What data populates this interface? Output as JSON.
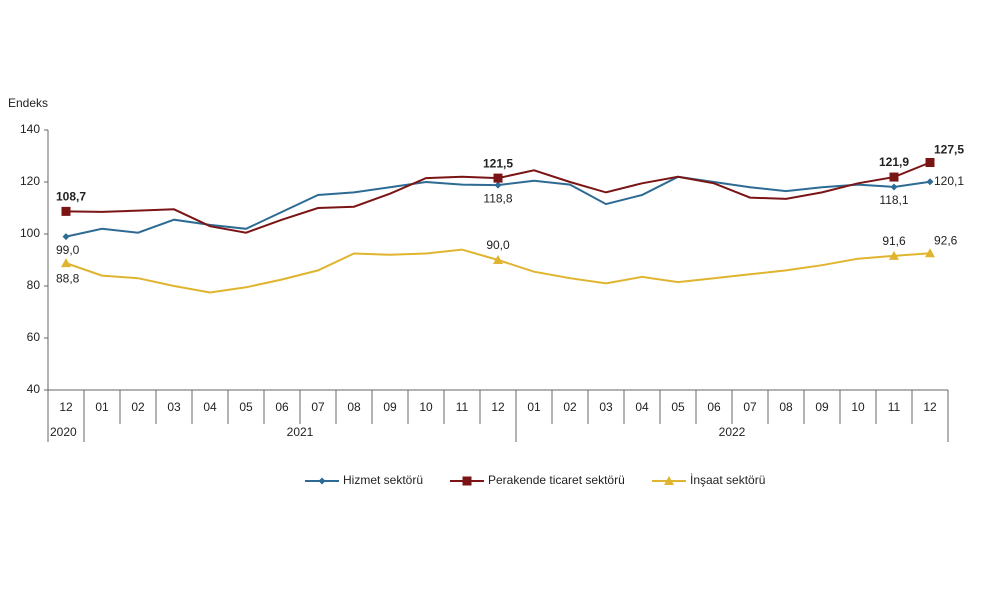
{
  "chart_data": {
    "type": "line",
    "y_label": "Endeks",
    "categories": [
      "12",
      "01",
      "02",
      "03",
      "04",
      "05",
      "06",
      "07",
      "08",
      "09",
      "10",
      "11",
      "12",
      "01",
      "02",
      "03",
      "04",
      "05",
      "06",
      "07",
      "08",
      "09",
      "10",
      "11",
      "12"
    ],
    "groups": [
      {
        "label": "2020",
        "count": 1
      },
      {
        "label": "2021",
        "count": 12
      },
      {
        "label": "2022",
        "count": 12
      }
    ],
    "ylim": [
      40,
      140
    ],
    "yticks": [
      40,
      60,
      80,
      100,
      120,
      140
    ],
    "grid": false,
    "series": [
      {
        "name": "Hizmet sektörü",
        "color": "#2e6b94",
        "marker": "diamond",
        "values": [
          99.0,
          102,
          100.5,
          105.5,
          103.5,
          102,
          108.5,
          115,
          116,
          118,
          120,
          119,
          118.8,
          120.5,
          119,
          111.5,
          115,
          122,
          120,
          118,
          116.5,
          118,
          119,
          118.1,
          120.1
        ],
        "value_labels": [
          "99,0",
          null,
          null,
          null,
          null,
          null,
          null,
          null,
          null,
          null,
          null,
          null,
          "118,8",
          null,
          null,
          null,
          null,
          null,
          null,
          null,
          null,
          null,
          null,
          "118,1",
          "120,1"
        ]
      },
      {
        "name": "Perakende ticaret sektörü",
        "color": "#7b1414",
        "marker": "square",
        "values": [
          108.7,
          108.5,
          109,
          109.5,
          103,
          100.5,
          105.5,
          110,
          110.5,
          115.5,
          121.5,
          122,
          121.5,
          124.5,
          120,
          116,
          119.5,
          122,
          119.5,
          114,
          113.5,
          116,
          119.5,
          121.9,
          127.5
        ],
        "value_labels": [
          "108,7",
          null,
          null,
          null,
          null,
          null,
          null,
          null,
          null,
          null,
          null,
          null,
          "121,5",
          null,
          null,
          null,
          null,
          null,
          null,
          null,
          null,
          null,
          null,
          "121,9",
          "127,5"
        ]
      },
      {
        "name": "İnşaat sektörü",
        "color": "#e0b42e",
        "marker": "triangle",
        "values": [
          88.8,
          84,
          83,
          80,
          77.5,
          79.5,
          82.5,
          86,
          92.5,
          92,
          92.5,
          94,
          90.0,
          85.5,
          83,
          81,
          83.5,
          81.5,
          83,
          84.5,
          86,
          88,
          90.5,
          91.6,
          92.6
        ],
        "value_labels": [
          "88,8",
          null,
          null,
          null,
          null,
          null,
          null,
          null,
          null,
          null,
          null,
          null,
          "90,0",
          null,
          null,
          null,
          null,
          null,
          null,
          null,
          null,
          null,
          null,
          "91,6",
          "92,6"
        ]
      }
    ]
  }
}
